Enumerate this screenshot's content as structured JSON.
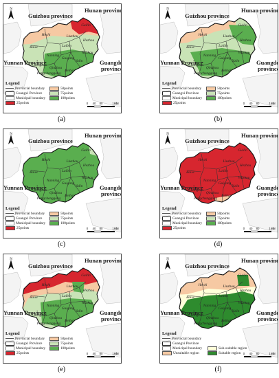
{
  "places": {
    "guizhou": "Guizhou province",
    "hunan": "Hunan province",
    "yunnan": "Yunnan Province",
    "guangdong_1": "Guangdong",
    "guangdong_2": "province"
  },
  "cities": [
    "Hechi",
    "Guilin",
    "Liuzhou",
    "Hezhou",
    "Baise",
    "Laibin",
    "Wuzhou",
    "Nanning",
    "Guigang",
    "Chongzuo",
    "Yulin",
    "Qinzhou",
    "Fangchenggang",
    "Beihai"
  ],
  "north_label": "N",
  "scale": {
    "labels": [
      "0",
      "40",
      "80",
      "160"
    ],
    "unit": "km"
  },
  "legend": {
    "title": "Legend",
    "score_items": [
      {
        "label": "Provincial boundary",
        "kind": "line"
      },
      {
        "label": "Guangxi Province",
        "kind": "box"
      },
      {
        "label": "Municipal boundary",
        "kind": "thin"
      },
      {
        "label": "25points",
        "kind": "fill",
        "color": "#d7262f"
      },
      {
        "label": "50points",
        "kind": "fill",
        "color": "#f6c9a3"
      },
      {
        "label": "75points",
        "kind": "fill",
        "color": "#c9e3b6"
      },
      {
        "label": "100points",
        "kind": "fill",
        "color": "#5aae4f"
      }
    ],
    "suit_items": [
      {
        "label": "Provincial boundary",
        "kind": "line"
      },
      {
        "label": "Guangxi Province",
        "kind": "box"
      },
      {
        "label": "Municipal boundary",
        "kind": "thin"
      },
      {
        "label": "Unsuitable region",
        "kind": "fill",
        "color": "#f6c9a3"
      },
      {
        "label": "Sub-suitable region",
        "kind": "fill",
        "color": "#ffffd9"
      },
      {
        "label": "Suitable region",
        "kind": "fill",
        "color": "#2e8b2e"
      }
    ]
  },
  "colors": {
    "c25": "#d7262f",
    "c50": "#f6c9a3",
    "c75": "#c9e3b6",
    "c100": "#5aae4f",
    "c_sub": "#ffffd9",
    "c_suit": "#2e8b2e",
    "outside": "#ffffff",
    "land": "#ffffff"
  },
  "panels": [
    {
      "caption": "(a)",
      "mode": "a"
    },
    {
      "caption": "(b)",
      "mode": "b"
    },
    {
      "caption": "(c)",
      "mode": "c"
    },
    {
      "caption": "(d)",
      "mode": "d"
    },
    {
      "caption": "(e)",
      "mode": "e"
    },
    {
      "caption": "(f)",
      "mode": "f"
    }
  ]
}
